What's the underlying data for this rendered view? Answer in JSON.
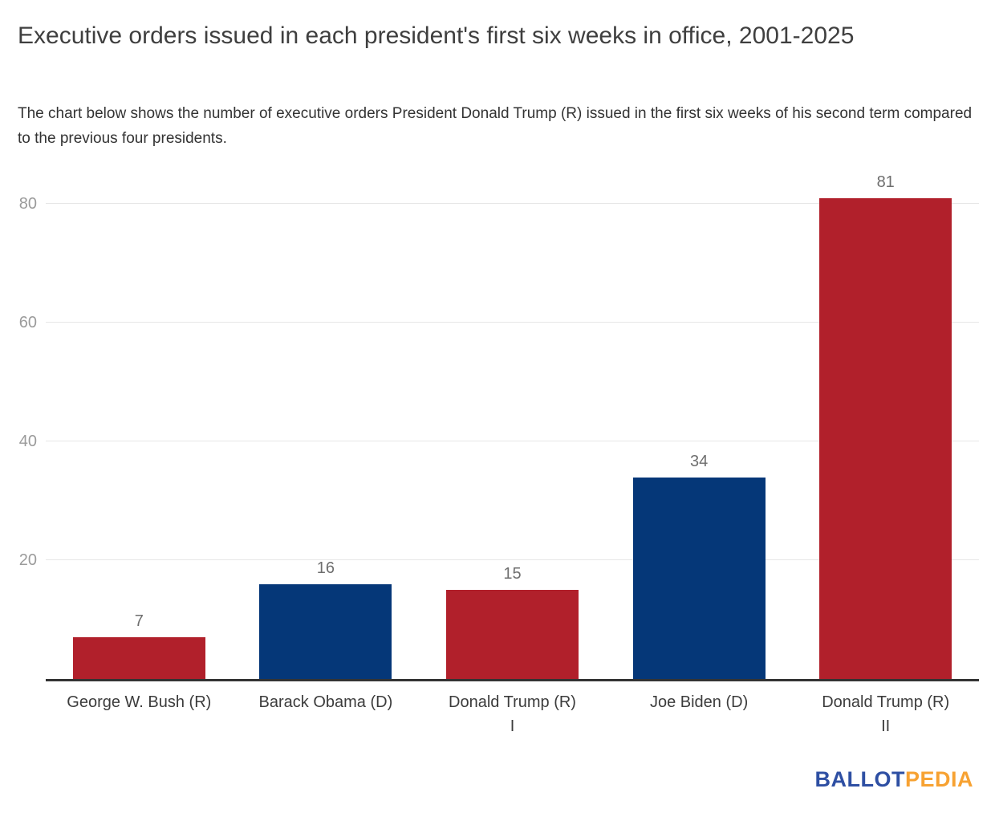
{
  "header": {
    "title": "Executive orders issued in each president's first six weeks in office, 2001-2025",
    "subtitle": "The chart below shows the number of executive orders President Donald Trump (R) issued in the first six weeks of his second term compared to the previous four presidents."
  },
  "chart_data": {
    "type": "bar",
    "title": "Executive orders issued in each president's first six weeks in office, 2001-2025",
    "categories": [
      "George W. Bush (R)",
      "Barack Obama (D)",
      "Donald Trump (R)\nI",
      "Joe Biden (D)",
      "Donald Trump (R)\nII"
    ],
    "values": [
      7,
      16,
      15,
      34,
      81
    ],
    "bar_colors": [
      "#b1202b",
      "#053778",
      "#b1202b",
      "#053778",
      "#b1202b"
    ],
    "xlabel": "",
    "ylabel": "",
    "ylim": [
      0,
      86
    ],
    "yticks": [
      20,
      40,
      60,
      80
    ],
    "grid": true,
    "legend": false,
    "gridline_color": "#e7e7e7",
    "axis_color": "#333333",
    "data_label_color": "#6e6e6e",
    "tick_label_color": "#9b9b9b"
  },
  "logo": {
    "part1": "BALLOT",
    "part2": "PEDIA",
    "part1_color": "#2e4fa3",
    "part2_color": "#f7a232"
  }
}
